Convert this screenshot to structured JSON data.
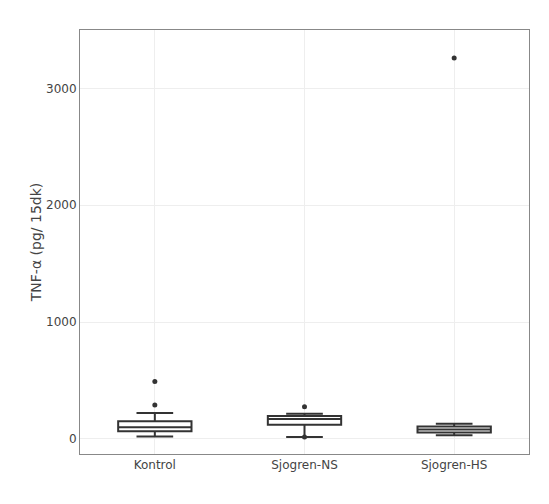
{
  "chart_data": {
    "type": "box",
    "categories": [
      "Kontrol",
      "Sjogren-NS",
      "Sjogren-HS"
    ],
    "boxes": [
      {
        "q1": 65,
        "median": 100,
        "q3": 150,
        "whisker_low": 20,
        "whisker_high": 220,
        "outliers": [
          290,
          490
        ]
      },
      {
        "q1": 120,
        "median": 170,
        "q3": 195,
        "whisker_low": 15,
        "whisker_high": 215,
        "outliers": [
          275,
          15
        ]
      },
      {
        "q1": 55,
        "median": 80,
        "q3": 105,
        "whisker_low": 30,
        "whisker_high": 130,
        "outliers": [
          3260
        ]
      }
    ],
    "ylabel": "TNF-α (pg/ 15dk)",
    "ylim": [
      -130,
      3500
    ],
    "yticks": [
      0,
      1000,
      2000,
      3000
    ],
    "color": "#333333",
    "grid": true
  }
}
